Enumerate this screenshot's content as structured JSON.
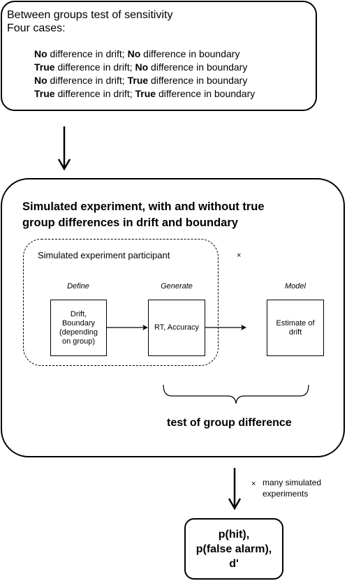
{
  "top_box": {
    "line1": "Between groups test of sensitivity",
    "line2": "Four cases:",
    "cases": [
      {
        "a_bold": "No",
        "a_text": " difference in drift; ",
        "b_bold": "No",
        "b_text": " difference in boundary"
      },
      {
        "a_bold": "True",
        "a_text": " difference in drift; ",
        "b_bold": "No",
        "b_text": " difference in boundary"
      },
      {
        "a_bold": "No",
        "a_text": " difference in drift; ",
        "b_bold": "True",
        "b_text": " difference in boundary"
      },
      {
        "a_bold": "True",
        "a_text": " difference in drift; ",
        "b_bold": "True",
        "b_text": " difference in boundary"
      }
    ]
  },
  "sim_box": {
    "title_line1": "Simulated experiment, with and without true",
    "title_line2": "group differences in drift and boundary",
    "participant_label": "Simulated experiment participant",
    "times_symbol": "×",
    "define_label": "Define",
    "generate_label": "Generate",
    "model_label": "Model",
    "define_box": "Drift, Boundary (depending on group)",
    "generate_box": "RT, Accuracy",
    "model_box": "Estimate of drift",
    "brace_label": "test of group difference"
  },
  "between": {
    "times_symbol": "×",
    "many_line1": "many simulated",
    "many_line2": "experiments"
  },
  "result_box": {
    "line1": "p(hit),",
    "line2": "p(false alarm),",
    "line3": "d'"
  }
}
